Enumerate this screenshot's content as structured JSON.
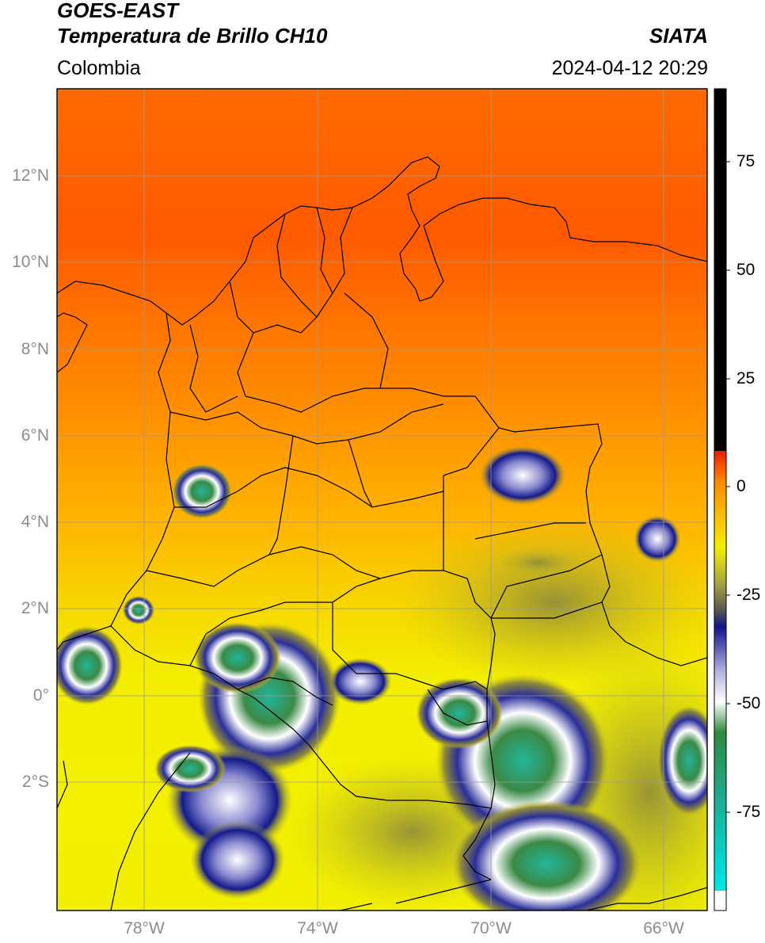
{
  "header": {
    "title_line1": "GOES-EAST",
    "title_line2": "Temperatura de Brillo CH10",
    "region": "Colombia",
    "source": "SIATA",
    "datetime": "2024-04-12 20:29"
  },
  "map": {
    "lat_ticks": [
      "12°N",
      "10°N",
      "8°N",
      "6°N",
      "4°N",
      "2°N",
      "0°",
      "2°S"
    ],
    "lon_ticks": [
      "78°W",
      "74°W",
      "70°W",
      "66°W"
    ]
  },
  "colorbar": {
    "ticks": [
      "75",
      "50",
      "25",
      "0",
      "-25",
      "-50",
      "-75"
    ],
    "colors": {
      "hot": "#000000",
      "red": "#ee1c00",
      "orange": "#ff8a00",
      "yellow": "#f4f000",
      "olive": "#a9a540",
      "navy": "#10148c",
      "white": "#ffffff",
      "green": "#2e8b3c",
      "cyan": "#00dcd8"
    }
  }
}
